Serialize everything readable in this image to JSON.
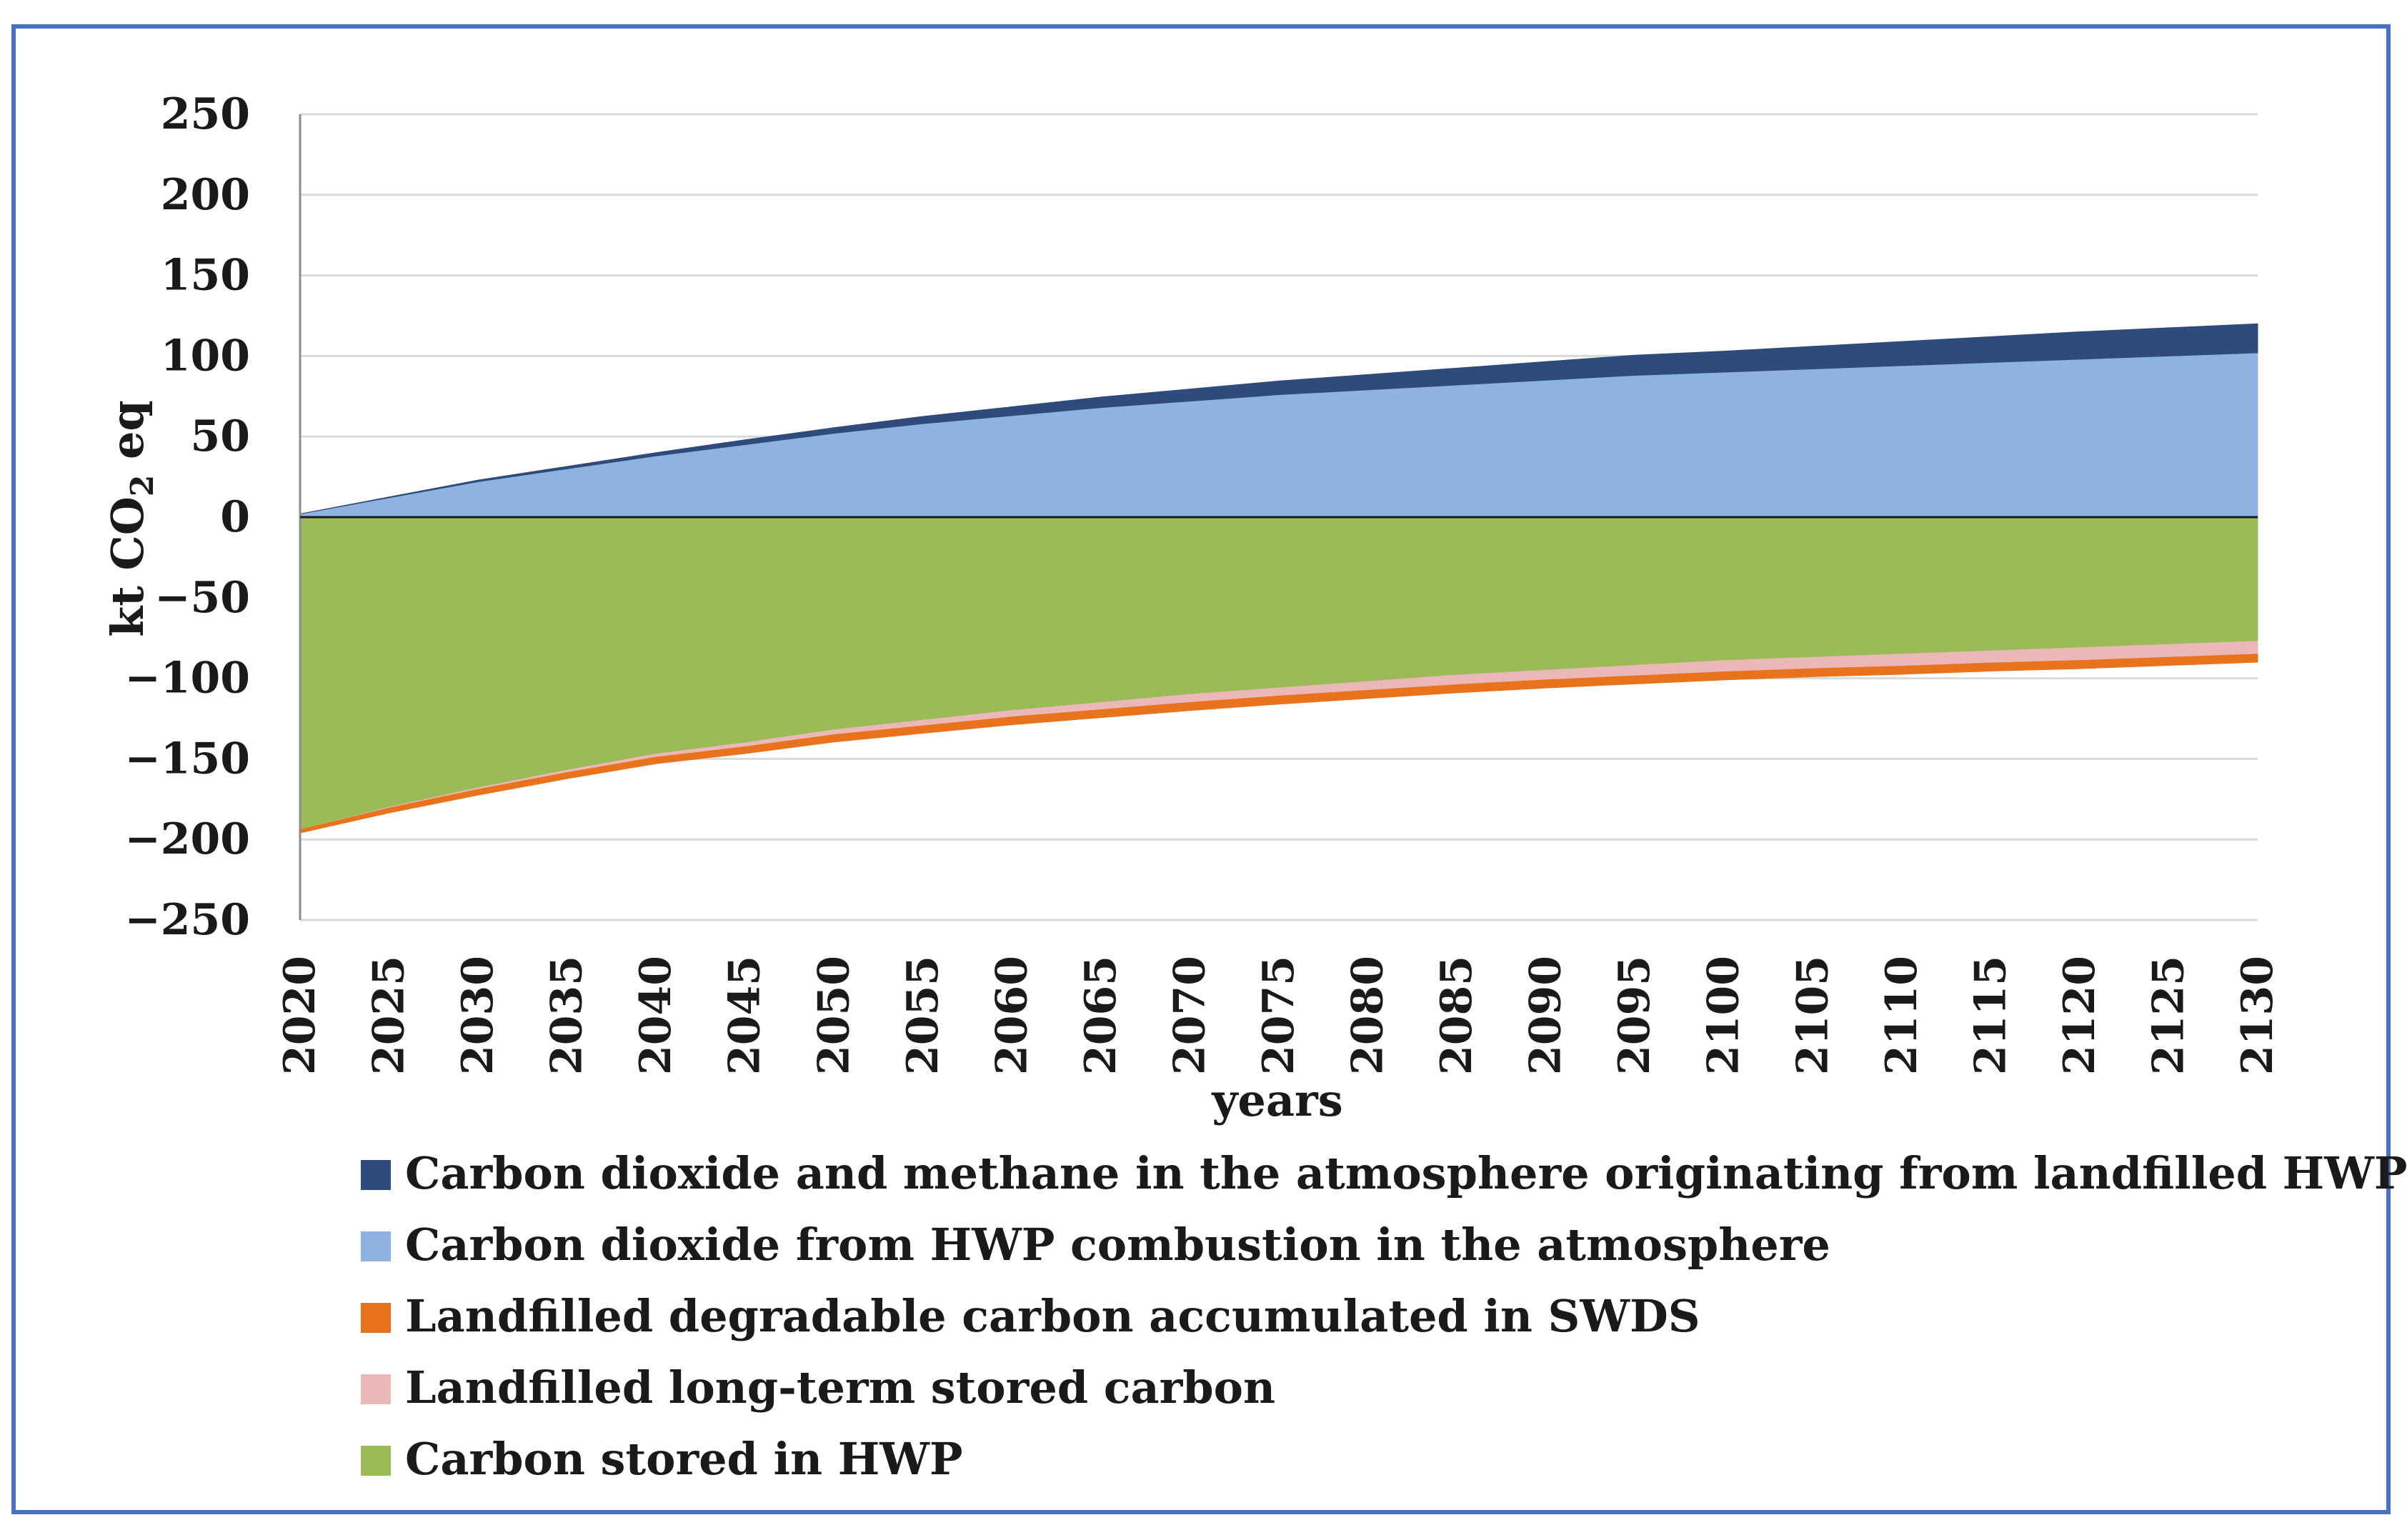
{
  "chart_data": {
    "type": "area",
    "stacked": true,
    "title": "",
    "xlabel": "years",
    "ylabel": "kt CO2 eq",
    "ylabel_main": "kt CO",
    "ylabel_sub": "2",
    "ylabel_tail": " eq",
    "ylim": [
      -250,
      250
    ],
    "xlim": [
      2020,
      2130
    ],
    "yticks": [
      "250",
      "200",
      "150",
      "100",
      "50",
      "0",
      "−50",
      "−100",
      "−150",
      "−200",
      "−250"
    ],
    "ytick_values": [
      250,
      200,
      150,
      100,
      50,
      0,
      -50,
      -100,
      -150,
      -200,
      -250
    ],
    "xticks": [
      "2020",
      "2025",
      "2030",
      "2035",
      "2040",
      "2045",
      "2050",
      "2055",
      "2060",
      "2065",
      "2070",
      "2075",
      "2080",
      "2085",
      "2090",
      "2095",
      "2100",
      "2105",
      "2110",
      "2115",
      "2120",
      "2125",
      "2130"
    ],
    "x": [
      2020,
      2025,
      2030,
      2035,
      2040,
      2045,
      2050,
      2055,
      2060,
      2065,
      2070,
      2075,
      2080,
      2085,
      2090,
      2095,
      2100,
      2105,
      2110,
      2115,
      2120,
      2125,
      2130
    ],
    "grid": true,
    "legend_position": "bottom",
    "series": [
      {
        "name": "Carbon dioxide and methane in the atmosphere originating from landfilled HWP",
        "color": "#2e4b7b",
        "values": [
          0,
          0.5,
          1,
          1.5,
          2,
          3,
          3.5,
          4.5,
          5.5,
          6.5,
          7.5,
          8.5,
          9.5,
          10.5,
          11.5,
          12.5,
          13,
          14,
          15,
          16,
          17,
          17.5,
          18
        ]
      },
      {
        "name": "Carbon dioxide from HWP combustion in the atmosphere",
        "color": "#8fb3e0",
        "values": [
          2,
          12,
          22,
          30,
          38,
          45,
          52,
          58,
          63,
          68,
          72,
          76,
          79,
          82,
          85,
          88,
          90,
          92,
          94,
          96,
          98,
          100,
          102
        ]
      },
      {
        "name": "Landfilled degradable carbon accumulated in SWDS",
        "color": "#e8731c",
        "values": [
          -2,
          -3,
          -3.5,
          -3.8,
          -4,
          -4.2,
          -4.5,
          -4.6,
          -4.8,
          -4.9,
          -5,
          -5,
          -5,
          -5,
          -5,
          -5,
          -5,
          -5,
          -5,
          -5,
          -5,
          -5,
          -5
        ]
      },
      {
        "name": "Landfilled long-term stored carbon",
        "color": "#ebb7b7",
        "values": [
          0,
          -0.5,
          -1,
          -1.5,
          -2,
          -2.5,
          -3,
          -3.5,
          -4,
          -4.5,
          -5,
          -5,
          -5.5,
          -6,
          -6,
          -6.5,
          -7,
          -7,
          -7.5,
          -7.5,
          -8,
          -8,
          -8
        ]
      },
      {
        "name": "Carbon stored in HWP",
        "color": "#9bbb59",
        "values": [
          -194,
          -180,
          -168,
          -157,
          -147,
          -140,
          -132,
          -126,
          -120,
          -115,
          -110,
          -106,
          -102,
          -98,
          -95,
          -92,
          -89,
          -87,
          -85,
          -83,
          -81,
          -79,
          -77
        ]
      }
    ],
    "legend_order": [
      0,
      1,
      2,
      3,
      4
    ]
  }
}
